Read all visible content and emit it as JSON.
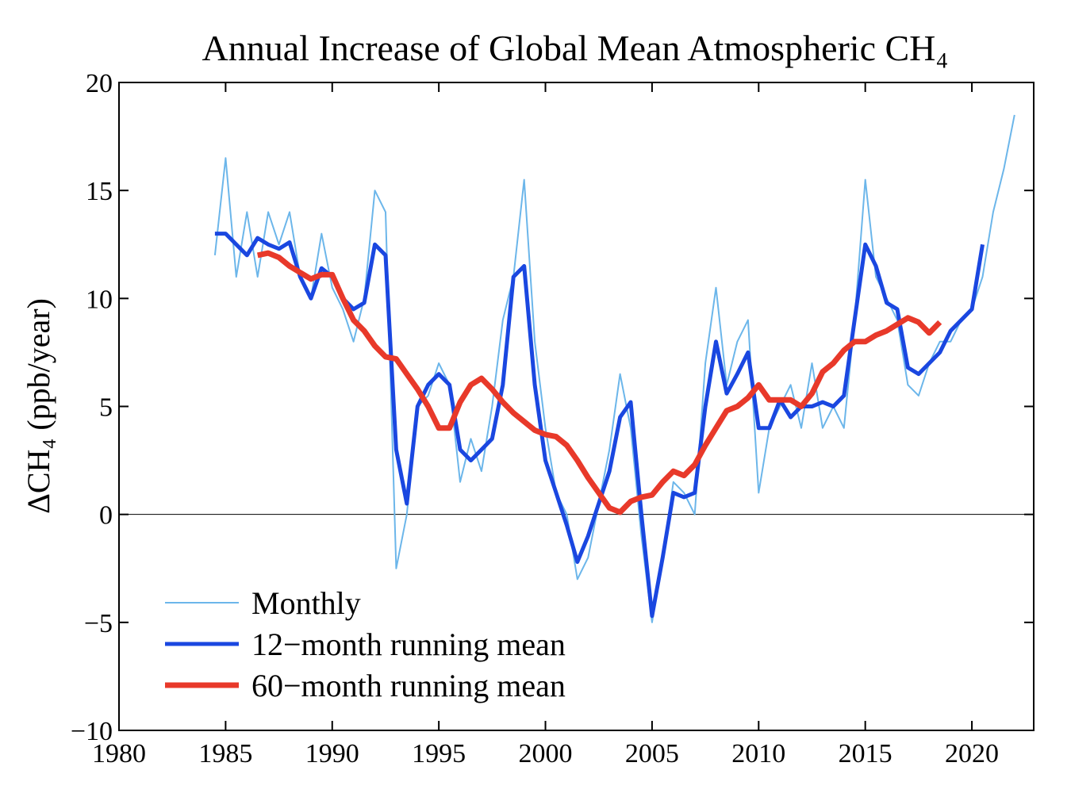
{
  "chart_data": {
    "type": "line",
    "title": "Annual Increase of Global Mean Atmospheric CH₄",
    "ylabel": "ΔCH₄ (ppb/year)",
    "xlim": [
      1980,
      2022.9
    ],
    "ylim": [
      -10,
      20
    ],
    "xticks": [
      1980,
      1985,
      1990,
      1995,
      2000,
      2005,
      2010,
      2015,
      2020
    ],
    "yticks": [
      {
        "value": -10,
        "label": "−10"
      },
      {
        "value": -5,
        "label": "−5"
      },
      0,
      5,
      10,
      15,
      20
    ],
    "zero_line": true,
    "legend": "lower left",
    "series": [
      {
        "name": "Monthly",
        "color": "#6cb6ea",
        "width": 2,
        "x": [
          1984.5,
          1985,
          1985.5,
          1986,
          1986.5,
          1987,
          1987.5,
          1988,
          1988.5,
          1989,
          1989.5,
          1990,
          1990.5,
          1991,
          1991.5,
          1992,
          1992.5,
          1993,
          1993.5,
          1994,
          1994.5,
          1995,
          1995.5,
          1996,
          1996.5,
          1997,
          1997.5,
          1998,
          1998.5,
          1999,
          1999.5,
          2000,
          2000.5,
          2001,
          2001.5,
          2002,
          2002.5,
          2003,
          2003.5,
          2004,
          2004.5,
          2005,
          2005.5,
          2006,
          2006.5,
          2007,
          2007.5,
          2008,
          2008.5,
          2009,
          2009.5,
          2010,
          2010.5,
          2011,
          2011.5,
          2012,
          2012.5,
          2013,
          2013.5,
          2014,
          2014.5,
          2015,
          2015.5,
          2016,
          2016.5,
          2017,
          2017.5,
          2018,
          2018.5,
          2019,
          2019.5,
          2020,
          2020.5,
          2021,
          2021.5,
          2022
        ],
        "values": [
          12,
          16.5,
          11,
          14,
          11,
          14,
          12.5,
          14,
          11,
          10,
          13,
          10.5,
          9.5,
          8,
          10,
          15,
          14,
          -2.5,
          0,
          5,
          5.5,
          7,
          6,
          1.5,
          3.5,
          2,
          5,
          9,
          11,
          15.5,
          8,
          4,
          1,
          0,
          -3,
          -2,
          0.5,
          3,
          6.5,
          4,
          -1,
          -5,
          -2,
          1.5,
          1,
          0,
          7,
          10.5,
          6,
          8,
          9,
          1,
          4,
          5,
          6,
          4,
          7,
          4,
          5,
          4,
          9,
          15.5,
          11,
          10,
          9,
          6,
          5.5,
          7,
          8,
          8,
          9,
          9.5,
          11,
          14,
          16,
          18.5
        ]
      },
      {
        "name": "12−month running mean",
        "color": "#1a47e0",
        "width": 5,
        "x": [
          1984.5,
          1985,
          1985.5,
          1986,
          1986.5,
          1987,
          1987.5,
          1988,
          1988.5,
          1989,
          1989.5,
          1990,
          1990.5,
          1991,
          1991.5,
          1992,
          1992.5,
          1993,
          1993.5,
          1994,
          1994.5,
          1995,
          1995.5,
          1996,
          1996.5,
          1997,
          1997.5,
          1998,
          1998.5,
          1999,
          1999.5,
          2000,
          2000.5,
          2001,
          2001.5,
          2002,
          2002.5,
          2003,
          2003.5,
          2004,
          2004.5,
          2005,
          2005.5,
          2006,
          2006.5,
          2007,
          2007.5,
          2008,
          2008.5,
          2009,
          2009.5,
          2010,
          2010.5,
          2011,
          2011.5,
          2012,
          2012.5,
          2013,
          2013.5,
          2014,
          2014.5,
          2015,
          2015.5,
          2016,
          2016.5,
          2017,
          2017.5,
          2018,
          2018.5,
          2019,
          2019.5,
          2020,
          2020.5
        ],
        "values": [
          13,
          13,
          12.5,
          12,
          12.8,
          12.5,
          12.3,
          12.6,
          11,
          10,
          11.4,
          11,
          10,
          9.5,
          9.8,
          12.5,
          12,
          3,
          0.5,
          5,
          6,
          6.5,
          6,
          3,
          2.5,
          3,
          3.5,
          6,
          11,
          11.5,
          6,
          2.5,
          1,
          -0.5,
          -2.2,
          -1,
          0.5,
          2,
          4.5,
          5.2,
          0,
          -4.7,
          -2,
          1,
          0.8,
          1,
          5,
          8,
          5.6,
          6.5,
          7.5,
          4,
          4,
          5.3,
          4.5,
          5,
          5,
          5.2,
          5,
          5.5,
          9,
          12.5,
          11.5,
          9.8,
          9.5,
          6.8,
          6.5,
          7,
          7.5,
          8.5,
          9,
          9.5,
          12.5
        ]
      },
      {
        "name": "60−month running mean",
        "color": "#e8392a",
        "width": 7,
        "x": [
          1986.5,
          1987,
          1987.5,
          1988,
          1988.5,
          1989,
          1989.5,
          1990,
          1990.5,
          1991,
          1991.5,
          1992,
          1992.5,
          1993,
          1993.5,
          1994,
          1994.5,
          1995,
          1995.5,
          1996,
          1996.5,
          1997,
          1997.5,
          1998,
          1998.5,
          1999,
          1999.5,
          2000,
          2000.5,
          2001,
          2001.5,
          2002,
          2002.5,
          2003,
          2003.5,
          2004,
          2004.5,
          2005,
          2005.5,
          2006,
          2006.5,
          2007,
          2007.5,
          2008,
          2008.5,
          2009,
          2009.5,
          2010,
          2010.5,
          2011,
          2011.5,
          2012,
          2012.5,
          2013,
          2013.5,
          2014,
          2014.5,
          2015,
          2015.5,
          2016,
          2016.5,
          2017,
          2017.5,
          2018,
          2018.5
        ],
        "values": [
          12,
          12.1,
          11.9,
          11.5,
          11.2,
          10.9,
          11.1,
          11.1,
          10,
          9,
          8.5,
          7.8,
          7.3,
          7.2,
          6.5,
          5.8,
          5,
          4,
          4,
          5.2,
          6,
          6.3,
          5.8,
          5.2,
          4.7,
          4.3,
          3.9,
          3.7,
          3.6,
          3.2,
          2.5,
          1.7,
          1,
          0.3,
          0.1,
          0.6,
          0.8,
          0.9,
          1.5,
          2,
          1.8,
          2.3,
          3.2,
          4,
          4.8,
          5,
          5.4,
          6,
          5.3,
          5.3,
          5.3,
          5,
          5.6,
          6.6,
          7,
          7.6,
          8,
          8,
          8.3,
          8.5,
          8.8,
          9.1,
          8.9,
          8.4,
          8.9
        ]
      }
    ]
  }
}
